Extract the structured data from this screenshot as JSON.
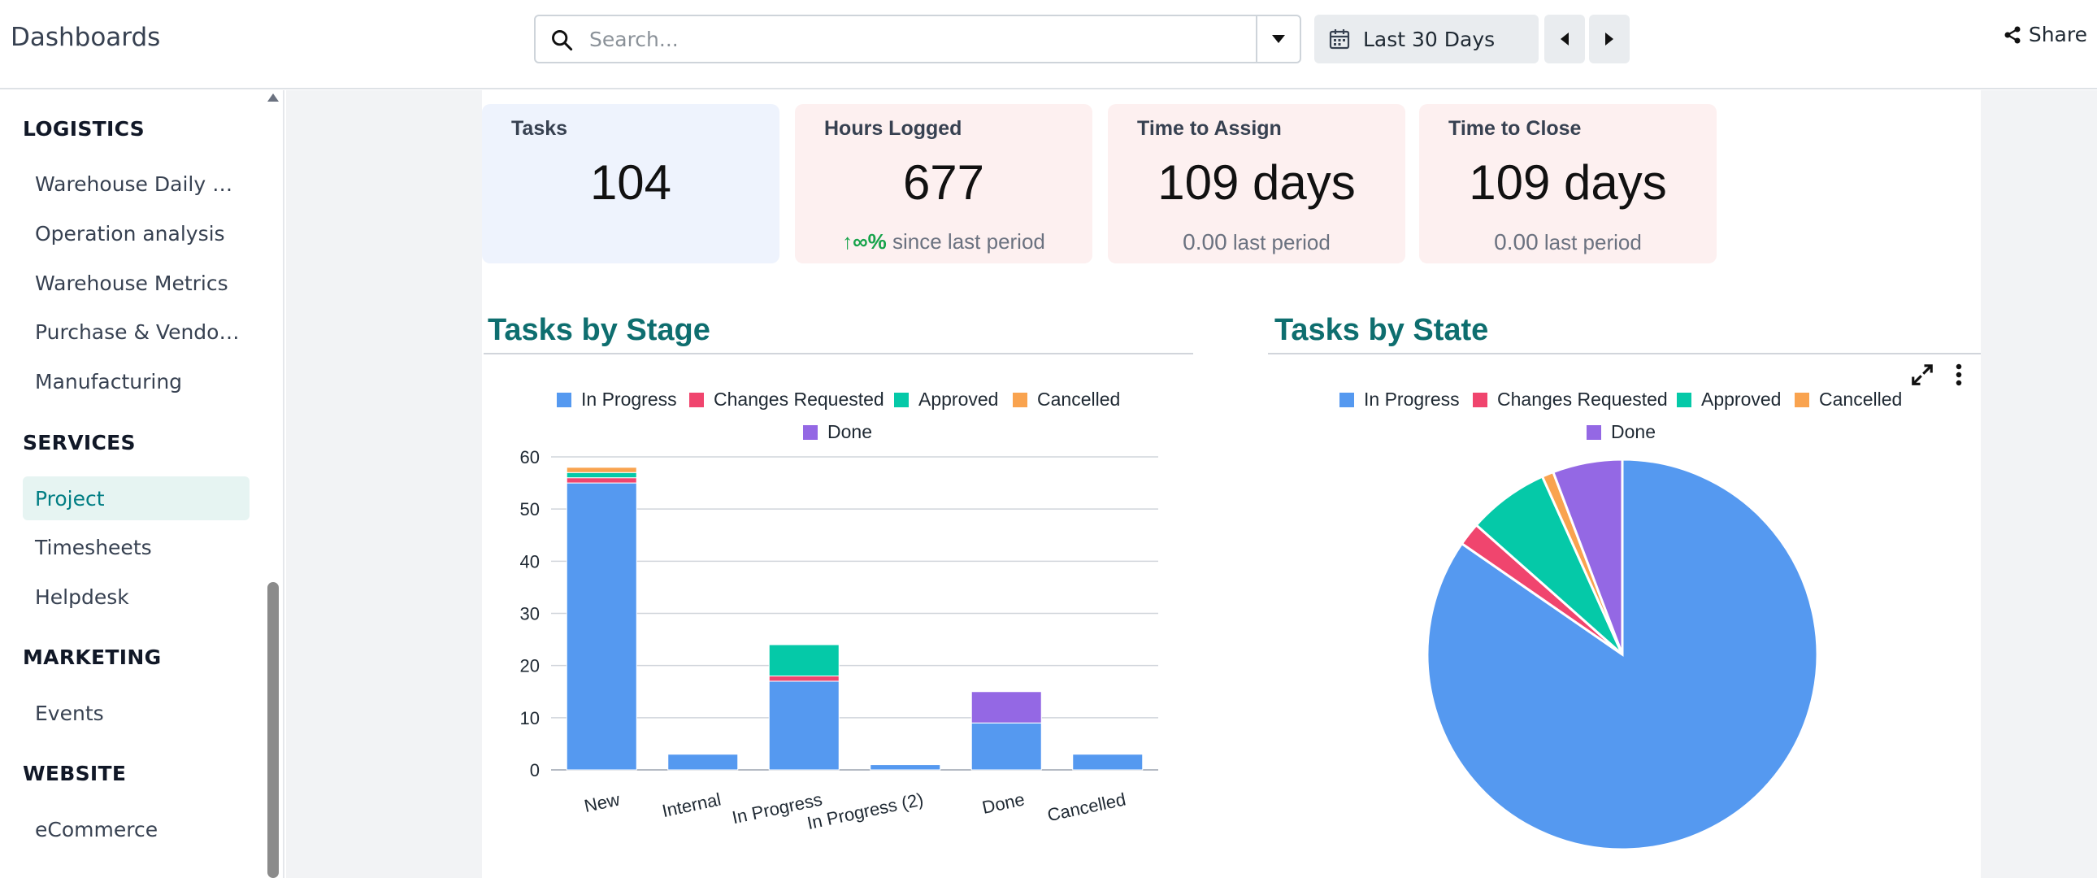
{
  "app": {
    "title": "Dashboards"
  },
  "search": {
    "placeholder": "Search..."
  },
  "date_filter": {
    "label": "Last 30 Days"
  },
  "share": {
    "label": "Share"
  },
  "sidebar": {
    "sections": [
      {
        "title": "LOGISTICS",
        "items": [
          "Warehouse Daily …",
          "Operation analysis",
          "Warehouse Metrics",
          "Purchase & Vendo…",
          "Manufacturing"
        ]
      },
      {
        "title": "SERVICES",
        "items": [
          "Project",
          "Timesheets",
          "Helpdesk"
        ]
      },
      {
        "title": "MARKETING",
        "items": [
          "Events"
        ]
      },
      {
        "title": "WEBSITE",
        "items": [
          "eCommerce"
        ]
      }
    ],
    "active_item": "Project"
  },
  "kpis": [
    {
      "title": "Tasks",
      "value": "104",
      "bg": "#eef3fd"
    },
    {
      "title": "Hours Logged",
      "value": "677",
      "trend_arrow": "↑∞%",
      "trend_text": "since last period",
      "bg": "#fdf0f0"
    },
    {
      "title": "Time to Assign",
      "value": "109 days",
      "sub_value": "0.00",
      "sub_text": "last period",
      "bg": "#fdf0f0"
    },
    {
      "title": "Time to Close",
      "value": "109 days",
      "sub_value": "0.00",
      "sub_text": "last period",
      "bg": "#fdf0f0"
    }
  ],
  "colors": {
    "in_progress": "#5599f0",
    "changes_requested": "#f0456e",
    "approved": "#05c9a8",
    "cancelled": "#f9a34f",
    "done": "#9468e4",
    "accent": "#017e84",
    "header": "#0e6e6f"
  },
  "chart_data": [
    {
      "type": "bar",
      "stacked": true,
      "title": "Tasks by Stage",
      "categories": [
        "New",
        "Internal",
        "In Progress",
        "In Progress (2)",
        "Done",
        "Cancelled"
      ],
      "series": [
        {
          "name": "In Progress",
          "values": [
            55,
            3,
            17,
            1,
            9,
            3
          ]
        },
        {
          "name": "Changes Requested",
          "values": [
            1,
            0,
            1,
            0,
            0,
            0
          ]
        },
        {
          "name": "Approved",
          "values": [
            1,
            0,
            6,
            0,
            0,
            0
          ]
        },
        {
          "name": "Cancelled",
          "values": [
            1,
            0,
            0,
            0,
            0,
            0
          ]
        },
        {
          "name": "Done",
          "values": [
            0,
            0,
            0,
            0,
            6,
            0
          ]
        }
      ],
      "ylim": [
        0,
        60
      ],
      "yticks": [
        0,
        10,
        20,
        30,
        40,
        50,
        60
      ],
      "legend": "top",
      "grid": true
    },
    {
      "type": "pie",
      "title": "Tasks by State",
      "labels": [
        "In Progress",
        "Changes Requested",
        "Approved",
        "Cancelled",
        "Done"
      ],
      "values": [
        88,
        2,
        7,
        1,
        6
      ],
      "legend": "top"
    }
  ]
}
